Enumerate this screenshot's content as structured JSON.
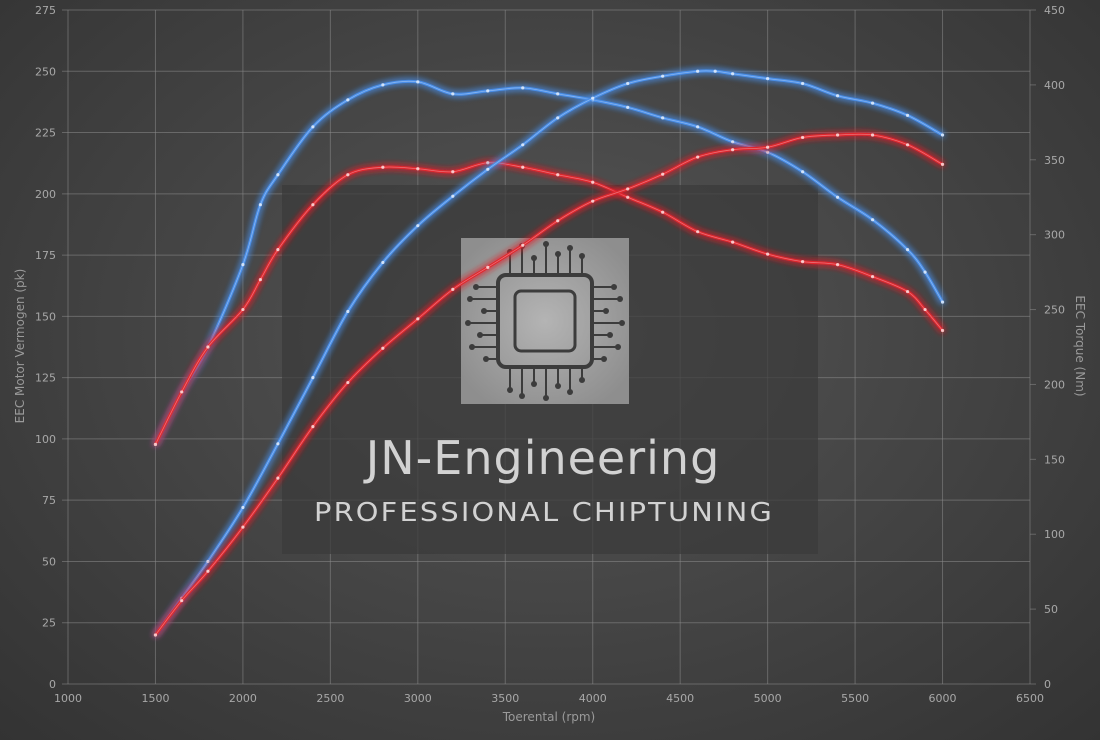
{
  "chart_data": {
    "type": "line",
    "xlabel": "Toerental (rpm)",
    "ylabel_left": "EEC Motor Vermogen (pk)",
    "ylabel_right": "EEC Torque (Nm)",
    "xlim": [
      1000,
      6500
    ],
    "ylim_left": [
      0,
      275
    ],
    "ylim_right": [
      0,
      450
    ],
    "x_ticks": [
      1000,
      1500,
      2000,
      2500,
      3000,
      3500,
      4000,
      4500,
      5000,
      5500,
      6000,
      6500
    ],
    "y_left_ticks": [
      0,
      25,
      50,
      75,
      100,
      125,
      150,
      175,
      200,
      225,
      250,
      275
    ],
    "y_right_ticks": [
      0,
      50,
      100,
      150,
      200,
      250,
      300,
      350,
      400,
      450
    ],
    "grid": true,
    "series_colors": {
      "tuned": "#4a8ee8",
      "stock": "#e0282f"
    },
    "series": [
      {
        "axis": "right",
        "group": "tuned",
        "x": [
          1500,
          1650,
          1800,
          2000,
          2100,
          2200,
          2400,
          2600,
          2800,
          3000,
          3200,
          3400,
          3600,
          3800,
          4000,
          4200,
          4400,
          4600,
          4800,
          5000,
          5200,
          5400,
          5600,
          5800,
          5900,
          6000
        ],
        "y": [
          160,
          195,
          225,
          280,
          320,
          340,
          372,
          390,
          400,
          402,
          394,
          396,
          398,
          394,
          390,
          385,
          378,
          372,
          362,
          355,
          342,
          325,
          310,
          290,
          275,
          255
        ]
      },
      {
        "axis": "right",
        "group": "stock",
        "x": [
          1500,
          1650,
          1800,
          2000,
          2100,
          2200,
          2400,
          2600,
          2800,
          3000,
          3200,
          3400,
          3600,
          3800,
          4000,
          4200,
          4400,
          4600,
          4800,
          5000,
          5200,
          5400,
          5600,
          5800,
          5900,
          6000
        ],
        "y": [
          160,
          195,
          225,
          250,
          270,
          290,
          320,
          340,
          345,
          344,
          342,
          348,
          345,
          340,
          335,
          325,
          315,
          302,
          295,
          287,
          282,
          280,
          272,
          262,
          250,
          236
        ]
      },
      {
        "axis": "left",
        "group": "tuned",
        "x": [
          1500,
          1650,
          1800,
          2000,
          2200,
          2400,
          2600,
          2800,
          3000,
          3200,
          3400,
          3600,
          3800,
          4000,
          4200,
          4400,
          4600,
          4700,
          4800,
          5000,
          5200,
          5400,
          5600,
          5800,
          6000
        ],
        "y": [
          20,
          35,
          50,
          72,
          98,
          125,
          152,
          172,
          187,
          199,
          210,
          220,
          231,
          239,
          245,
          248,
          250,
          250,
          249,
          247,
          245,
          240,
          237,
          232,
          224
        ]
      },
      {
        "axis": "left",
        "group": "stock",
        "x": [
          1500,
          1650,
          1800,
          2000,
          2200,
          2400,
          2600,
          2800,
          3000,
          3200,
          3400,
          3600,
          3800,
          4000,
          4200,
          4400,
          4600,
          4800,
          5000,
          5200,
          5400,
          5600,
          5800,
          6000
        ],
        "y": [
          20,
          34,
          46,
          64,
          84,
          105,
          123,
          137,
          149,
          161,
          170,
          179,
          189,
          197,
          202,
          208,
          215,
          218,
          219,
          223,
          224,
          224,
          220,
          212
        ]
      }
    ]
  },
  "watermark": {
    "title": "JN-Engineering",
    "subtitle": "PROFESSIONAL CHIPTUNING",
    "logo_icon": "circuit-chip-icon"
  }
}
